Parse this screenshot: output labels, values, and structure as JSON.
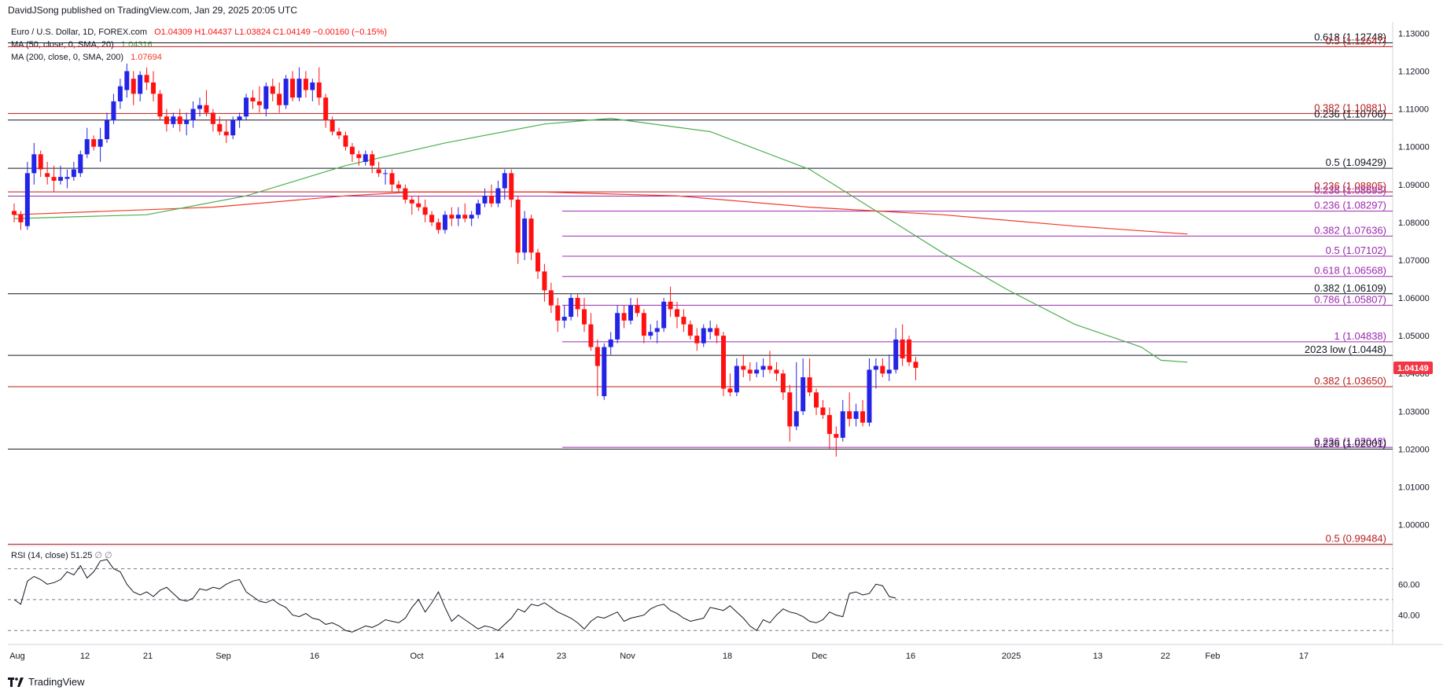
{
  "header": {
    "published": "DavidJSong published on TradingView.com, Jan 29, 2025 20:05 UTC"
  },
  "legend": {
    "symbol": "Euro / U.S. Dollar, 1D, FOREX.com",
    "ohlc": "O1.04309  H1.04437  L1.03824  C1.04149  −0.00160 (−0.15%)",
    "ma50_label": "MA (50, close, 0, SMA, 20)",
    "ma50_value": "1.04316",
    "ma200_label": "MA (200, close, 0, SMA, 200)",
    "ma200_value": "1.07694",
    "rsi_label": "RSI (14, close)",
    "rsi_value": "51.25",
    "rsi_extra": "∅  ∅"
  },
  "footer": {
    "brand": "TradingView"
  },
  "colors": {
    "up": "#2424e6",
    "down": "#ff1111",
    "ma50": "#4caf50",
    "ma200": "#f23a2a",
    "black_level": "#131722",
    "red_level": "#b71c1c",
    "purple_level": "#9c27b0"
  },
  "chart_data": {
    "type": "candlestick",
    "title": "Euro / U.S. Dollar, 1D, FOREX.com",
    "last_price": "1.04149",
    "price_axis": {
      "ylim": [
        0.9945,
        1.133
      ],
      "ticks": [
        "1.13000",
        "1.12000",
        "1.11000",
        "1.10000",
        "1.09000",
        "1.08000",
        "1.07000",
        "1.06000",
        "1.05000",
        "1.04000",
        "1.03000",
        "1.02000",
        "1.01000",
        "1.00000"
      ]
    },
    "x_ticks": [
      "Aug",
      "12",
      "21",
      "Sep",
      "16",
      "Oct",
      "14",
      "23",
      "Nov",
      "18",
      "Dec",
      "16",
      "2025",
      "13",
      "22",
      "Feb",
      "17"
    ],
    "levels": [
      {
        "label": "0.618 (1.12748)",
        "value": 1.12748,
        "color": "black",
        "span": "full"
      },
      {
        "label": "0.5 (1.12647)",
        "value": 1.12647,
        "color": "red",
        "span": "full"
      },
      {
        "label": "0.382 (1.10881)",
        "value": 1.10881,
        "color": "red",
        "span": "full"
      },
      {
        "label": "0.236 (1.10706)",
        "value": 1.10706,
        "color": "black",
        "span": "full"
      },
      {
        "label": "0.5 (1.09429)",
        "value": 1.09429,
        "color": "black",
        "span": "full"
      },
      {
        "label": "0.236 (1.08805)",
        "value": 1.08805,
        "color": "red",
        "span": "full"
      },
      {
        "label": "0.236 (1.08695)",
        "value": 1.08695,
        "color": "purple",
        "span": "full"
      },
      {
        "label": "0.236 (1.08297)",
        "value": 1.08297,
        "color": "purple",
        "span": "partial"
      },
      {
        "label": "0.382 (1.07636)",
        "value": 1.07636,
        "color": "purple",
        "span": "partial"
      },
      {
        "label": "0.5 (1.07102)",
        "value": 1.07102,
        "color": "purple",
        "span": "partial"
      },
      {
        "label": "0.618 (1.06568)",
        "value": 1.06568,
        "color": "purple",
        "span": "partial"
      },
      {
        "label": "0.382 (1.06109)",
        "value": 1.06109,
        "color": "black",
        "span": "full"
      },
      {
        "label": "0.786 (1.05807)",
        "value": 1.05807,
        "color": "purple",
        "span": "partial"
      },
      {
        "label": "1 (1.04838)",
        "value": 1.04838,
        "color": "purple",
        "span": "partial"
      },
      {
        "label": "2023 low (1.0448)",
        "value": 1.0448,
        "color": "black",
        "span": "full"
      },
      {
        "label": "0.382 (1.03650)",
        "value": 1.0365,
        "color": "red",
        "span": "full"
      },
      {
        "label": "0.236 (1.02048)",
        "value": 1.02048,
        "color": "purple",
        "span": "partial"
      },
      {
        "label": "0.236 (1.02001)",
        "value": 1.02001,
        "color": "black",
        "span": "full"
      },
      {
        "label": "0.5 (0.99484)",
        "value": 0.99484,
        "color": "red",
        "span": "full"
      }
    ],
    "candles": [
      [
        1.083,
        1.085,
        1.08,
        1.082
      ],
      [
        1.082,
        1.083,
        1.078,
        1.08
      ],
      [
        1.079,
        1.096,
        1.078,
        1.093
      ],
      [
        1.093,
        1.101,
        1.09,
        1.098
      ],
      [
        1.098,
        1.099,
        1.092,
        1.094
      ],
      [
        1.093,
        1.096,
        1.09,
        1.092
      ],
      [
        1.092,
        1.095,
        1.088,
        1.091
      ],
      [
        1.091,
        1.095,
        1.09,
        1.092
      ],
      [
        1.0915,
        1.094,
        1.089,
        1.092
      ],
      [
        1.092,
        1.096,
        1.091,
        1.094
      ],
      [
        1.093,
        1.099,
        1.092,
        1.098
      ],
      [
        1.098,
        1.105,
        1.097,
        1.102
      ],
      [
        1.102,
        1.103,
        1.099,
        1.1
      ],
      [
        1.1,
        1.105,
        1.096,
        1.102
      ],
      [
        1.102,
        1.109,
        1.101,
        1.107
      ],
      [
        1.107,
        1.114,
        1.106,
        1.112
      ],
      [
        1.112,
        1.118,
        1.11,
        1.116
      ],
      [
        1.115,
        1.122,
        1.113,
        1.12
      ],
      [
        1.118,
        1.12,
        1.111,
        1.114
      ],
      [
        1.114,
        1.12,
        1.112,
        1.119
      ],
      [
        1.119,
        1.121,
        1.115,
        1.117
      ],
      [
        1.117,
        1.12,
        1.112,
        1.114
      ],
      [
        1.114,
        1.115,
        1.107,
        1.108
      ],
      [
        1.108,
        1.11,
        1.104,
        1.106
      ],
      [
        1.106,
        1.109,
        1.105,
        1.108
      ],
      [
        1.108,
        1.11,
        1.104,
        1.106
      ],
      [
        1.106,
        1.109,
        1.103,
        1.107
      ],
      [
        1.107,
        1.112,
        1.105,
        1.11
      ],
      [
        1.11,
        1.113,
        1.108,
        1.111
      ],
      [
        1.111,
        1.115,
        1.108,
        1.109
      ],
      [
        1.109,
        1.11,
        1.104,
        1.106
      ],
      [
        1.106,
        1.108,
        1.103,
        1.104
      ],
      [
        1.104,
        1.107,
        1.101,
        1.103
      ],
      [
        1.103,
        1.108,
        1.102,
        1.107
      ],
      [
        1.107,
        1.109,
        1.105,
        1.108
      ],
      [
        1.108,
        1.114,
        1.107,
        1.113
      ],
      [
        1.113,
        1.115,
        1.11,
        1.112
      ],
      [
        1.112,
        1.116,
        1.109,
        1.111
      ],
      [
        1.11,
        1.117,
        1.108,
        1.116
      ],
      [
        1.116,
        1.118,
        1.112,
        1.114
      ],
      [
        1.114,
        1.117,
        1.109,
        1.111
      ],
      [
        1.111,
        1.119,
        1.11,
        1.118
      ],
      [
        1.118,
        1.12,
        1.112,
        1.113
      ],
      [
        1.113,
        1.121,
        1.112,
        1.118
      ],
      [
        1.118,
        1.12,
        1.113,
        1.115
      ],
      [
        1.115,
        1.118,
        1.112,
        1.117
      ],
      [
        1.117,
        1.121,
        1.111,
        1.113
      ],
      [
        1.113,
        1.114,
        1.105,
        1.107
      ],
      [
        1.107,
        1.108,
        1.103,
        1.104
      ],
      [
        1.104,
        1.105,
        1.102,
        1.103
      ],
      [
        1.103,
        1.104,
        1.099,
        1.1
      ],
      [
        1.1,
        1.101,
        1.096,
        1.098
      ],
      [
        1.098,
        1.099,
        1.095,
        1.097
      ],
      [
        1.096,
        1.099,
        1.095,
        1.098
      ],
      [
        1.098,
        1.099,
        1.093,
        1.095
      ],
      [
        1.094,
        1.096,
        1.092,
        1.093
      ],
      [
        1.093,
        1.094,
        1.09,
        1.093
      ],
      [
        1.093,
        1.094,
        1.088,
        1.09
      ],
      [
        1.09,
        1.091,
        1.088,
        1.089
      ],
      [
        1.089,
        1.09,
        1.085,
        1.086
      ],
      [
        1.086,
        1.087,
        1.082,
        1.085
      ],
      [
        1.085,
        1.087,
        1.083,
        1.084
      ],
      [
        1.084,
        1.086,
        1.08,
        1.082
      ],
      [
        1.082,
        1.083,
        1.079,
        1.08
      ],
      [
        1.08,
        1.081,
        1.077,
        1.078
      ],
      [
        1.078,
        1.083,
        1.077,
        1.082
      ],
      [
        1.082,
        1.084,
        1.079,
        1.081
      ],
      [
        1.081,
        1.084,
        1.079,
        1.082
      ],
      [
        1.082,
        1.085,
        1.08,
        1.081
      ],
      [
        1.081,
        1.083,
        1.079,
        1.082
      ],
      [
        1.082,
        1.086,
        1.081,
        1.085
      ],
      [
        1.085,
        1.089,
        1.084,
        1.087
      ],
      [
        1.087,
        1.09,
        1.084,
        1.085
      ],
      [
        1.085,
        1.091,
        1.084,
        1.089
      ],
      [
        1.089,
        1.094,
        1.086,
        1.093
      ],
      [
        1.093,
        1.094,
        1.084,
        1.086
      ],
      [
        1.086,
        1.087,
        1.069,
        1.072
      ],
      [
        1.072,
        1.083,
        1.07,
        1.081
      ],
      [
        1.081,
        1.082,
        1.07,
        1.072
      ],
      [
        1.072,
        1.073,
        1.065,
        1.067
      ],
      [
        1.067,
        1.069,
        1.059,
        1.062
      ],
      [
        1.062,
        1.064,
        1.056,
        1.058
      ],
      [
        1.058,
        1.06,
        1.051,
        1.054
      ],
      [
        1.054,
        1.058,
        1.052,
        1.055
      ],
      [
        1.055,
        1.061,
        1.054,
        1.06
      ],
      [
        1.06,
        1.061,
        1.055,
        1.057
      ],
      [
        1.057,
        1.06,
        1.051,
        1.053
      ],
      [
        1.053,
        1.056,
        1.046,
        1.047
      ],
      [
        1.047,
        1.049,
        1.034,
        1.042
      ],
      [
        1.034,
        1.048,
        1.033,
        1.047
      ],
      [
        1.047,
        1.051,
        1.045,
        1.049
      ],
      [
        1.049,
        1.058,
        1.048,
        1.056
      ],
      [
        1.056,
        1.058,
        1.052,
        1.054
      ],
      [
        1.054,
        1.06,
        1.053,
        1.058
      ],
      [
        1.058,
        1.06,
        1.055,
        1.056
      ],
      [
        1.056,
        1.057,
        1.048,
        1.05
      ],
      [
        1.05,
        1.053,
        1.049,
        1.051
      ],
      [
        1.051,
        1.054,
        1.048,
        1.052
      ],
      [
        1.052,
        1.06,
        1.051,
        1.059
      ],
      [
        1.059,
        1.063,
        1.055,
        1.057
      ],
      [
        1.057,
        1.059,
        1.052,
        1.055
      ],
      [
        1.055,
        1.057,
        1.051,
        1.053
      ],
      [
        1.053,
        1.054,
        1.049,
        1.05
      ],
      [
        1.05,
        1.052,
        1.046,
        1.048
      ],
      [
        1.048,
        1.053,
        1.047,
        1.052
      ],
      [
        1.051,
        1.054,
        1.049,
        1.052
      ],
      [
        1.052,
        1.053,
        1.048,
        1.05
      ],
      [
        1.05,
        1.051,
        1.034,
        1.036
      ],
      [
        1.036,
        1.04,
        1.034,
        1.035
      ],
      [
        1.035,
        1.044,
        1.034,
        1.042
      ],
      [
        1.042,
        1.045,
        1.039,
        1.041
      ],
      [
        1.041,
        1.043,
        1.038,
        1.04
      ],
      [
        1.04,
        1.043,
        1.039,
        1.041
      ],
      [
        1.041,
        1.044,
        1.039,
        1.042
      ],
      [
        1.042,
        1.046,
        1.04,
        1.041
      ],
      [
        1.041,
        1.043,
        1.038,
        1.04
      ],
      [
        1.04,
        1.041,
        1.033,
        1.035
      ],
      [
        1.035,
        1.037,
        1.022,
        1.026
      ],
      [
        1.026,
        1.043,
        1.025,
        1.03
      ],
      [
        1.03,
        1.044,
        1.029,
        1.039
      ],
      [
        1.039,
        1.044,
        1.034,
        1.035
      ],
      [
        1.035,
        1.036,
        1.029,
        1.031
      ],
      [
        1.031,
        1.033,
        1.028,
        1.029
      ],
      [
        1.029,
        1.031,
        1.02,
        1.024
      ],
      [
        1.024,
        1.026,
        1.018,
        1.023
      ],
      [
        1.023,
        1.033,
        1.022,
        1.03
      ],
      [
        1.03,
        1.035,
        1.026,
        1.028
      ],
      [
        1.028,
        1.032,
        1.026,
        1.03
      ],
      [
        1.03,
        1.033,
        1.026,
        1.027
      ],
      [
        1.027,
        1.044,
        1.026,
        1.041
      ],
      [
        1.041,
        1.044,
        1.036,
        1.042
      ],
      [
        1.042,
        1.044,
        1.039,
        1.04
      ],
      [
        1.04,
        1.045,
        1.038,
        1.041
      ],
      [
        1.041,
        1.052,
        1.04,
        1.049
      ],
      [
        1.049,
        1.053,
        1.042,
        1.044
      ],
      [
        1.049,
        1.05,
        1.042,
        1.043
      ],
      [
        1.0431,
        1.0444,
        1.0382,
        1.0415
      ]
    ],
    "ma50": [
      [
        0,
        1.081
      ],
      [
        20,
        1.082
      ],
      [
        35,
        1.087
      ],
      [
        50,
        1.095
      ],
      [
        65,
        1.101
      ],
      [
        80,
        1.106
      ],
      [
        90,
        1.1075
      ],
      [
        105,
        1.104
      ],
      [
        120,
        1.094
      ],
      [
        130,
        1.083
      ],
      [
        140,
        1.072
      ],
      [
        150,
        1.062
      ],
      [
        160,
        1.053
      ],
      [
        170,
        1.047
      ],
      [
        173,
        1.0435
      ],
      [
        177,
        1.043
      ]
    ],
    "ma200": [
      [
        0,
        1.082
      ],
      [
        30,
        1.084
      ],
      [
        50,
        1.087
      ],
      [
        60,
        1.088
      ],
      [
        80,
        1.088
      ],
      [
        100,
        1.087
      ],
      [
        120,
        1.084
      ],
      [
        140,
        1.082
      ],
      [
        160,
        1.079
      ],
      [
        177,
        1.0769
      ]
    ],
    "rsi": {
      "ylim": [
        22,
        82
      ],
      "ticks": [
        "60.00",
        "40.00"
      ],
      "levels": [
        70,
        50,
        30
      ],
      "values": [
        50,
        47,
        62,
        65,
        63,
        60,
        61,
        63,
        68,
        66,
        72,
        64,
        68,
        75,
        76,
        70,
        68,
        60,
        55,
        53,
        55,
        52,
        56,
        58,
        54,
        50,
        49,
        51,
        57,
        56,
        58,
        57,
        60,
        62,
        63,
        55,
        52,
        49,
        48,
        50,
        47,
        45,
        40,
        39,
        41,
        38,
        37,
        34,
        35,
        33,
        30,
        29,
        31,
        33,
        32,
        34,
        37,
        36,
        35,
        38,
        45,
        50,
        42,
        48,
        55,
        45,
        36,
        40,
        37,
        34,
        31,
        33,
        32,
        30,
        34,
        38,
        44,
        42,
        47,
        46,
        48,
        45,
        42,
        40,
        38,
        35,
        31,
        36,
        39,
        38,
        40,
        42,
        36,
        38,
        39,
        40,
        44,
        46,
        47,
        43,
        41,
        38,
        36,
        37,
        38,
        45,
        44,
        43,
        46,
        42,
        38,
        33,
        30,
        37,
        35,
        40,
        44,
        42,
        41,
        39,
        36,
        35,
        37,
        42,
        40,
        39,
        54,
        55,
        53,
        54,
        60,
        59,
        52,
        51
      ]
    },
    "markers": [
      {
        "label": "2023 low",
        "value": 1.0448
      }
    ]
  }
}
